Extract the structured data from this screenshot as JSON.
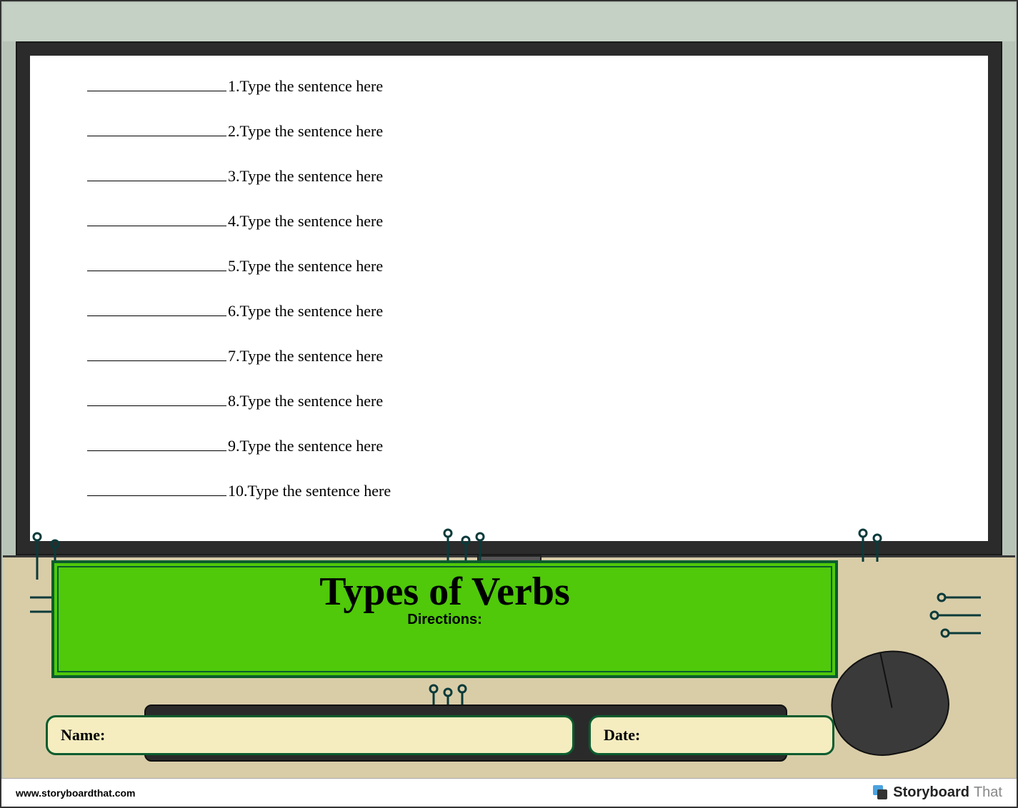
{
  "worksheet": {
    "title": "Types of Verbs",
    "directions_label": "Directions:",
    "rows": [
      {
        "num": "1.",
        "text": " Type the sentence here"
      },
      {
        "num": "2.",
        "text": " Type the sentence here"
      },
      {
        "num": "3.",
        "text": " Type the sentence here"
      },
      {
        "num": "4.",
        "text": " Type the sentence here"
      },
      {
        "num": "5.",
        "text": " Type the sentence here"
      },
      {
        "num": "6.",
        "text": " Type the sentence here"
      },
      {
        "num": "7.",
        "text": " Type the sentence here"
      },
      {
        "num": "8.",
        "text": " Type the sentence here"
      },
      {
        "num": "9.",
        "text": " Type the sentence here"
      },
      {
        "num": "10.",
        "text": " Type the sentence here"
      }
    ],
    "name_label": "Name:",
    "date_label": "Date:"
  },
  "footer": {
    "url": "www.storyboardthat.com",
    "brand_bold": "Storyboard",
    "brand_thin": "That"
  },
  "colors": {
    "title_bg": "#4fc90a",
    "title_border": "#0a5c2e",
    "field_bg": "#f5edc0",
    "desk": "#d9cda8",
    "monitor": "#2b2b2b",
    "screen": "#ffffff",
    "circuit": "#0a3a3a"
  }
}
